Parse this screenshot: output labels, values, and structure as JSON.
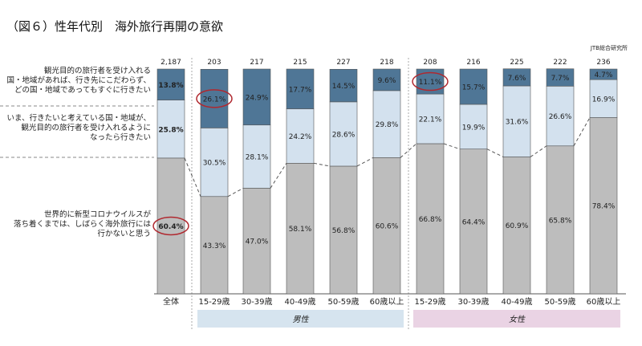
{
  "title": "（図６）性年代別　海外旅行再開の意欲",
  "source": "JTB総合研究所",
  "chart_data": {
    "type": "bar",
    "stacked": true,
    "percent_stacked": true,
    "categories": [
      "全体",
      "15-29歳",
      "30-39歳",
      "40-49歳",
      "50-59歳",
      "60歳以上",
      "15-29歳",
      "30-39歳",
      "40-49歳",
      "50-59歳",
      "60歳以上"
    ],
    "sample_sizes": [
      "2,187",
      "203",
      "217",
      "215",
      "227",
      "218",
      "208",
      "216",
      "225",
      "222",
      "236"
    ],
    "groups": [
      {
        "label": "男性",
        "start": 1,
        "end": 5,
        "color": "#d6e4ef"
      },
      {
        "label": "女性",
        "start": 6,
        "end": 10,
        "color": "#ead3e4"
      }
    ],
    "series": [
      {
        "name": "世界的に新型コロナウイルスが落ち着くまでは、しばらく海外旅行には行かないと思う",
        "color": "#bdbdbd",
        "values": [
          60.4,
          43.3,
          47.0,
          58.1,
          56.8,
          60.6,
          66.8,
          64.4,
          60.9,
          65.8,
          78.4
        ]
      },
      {
        "name": "いま、行きたいと考えている国・地域が、観光目的の旅行者を受け入れるようになったら行きたい",
        "color": "#d3e1ee",
        "values": [
          25.8,
          30.5,
          28.1,
          24.2,
          28.6,
          29.8,
          22.1,
          19.9,
          31.6,
          26.6,
          16.9
        ]
      },
      {
        "name": "観光目的の旅行者を受け入れる国・地域があれば、行き先にこだわらず、どの国・地域であってもすぐに行きたい",
        "color": "#4f7696",
        "values": [
          13.8,
          26.1,
          24.9,
          17.7,
          14.5,
          9.6,
          11.1,
          15.7,
          7.6,
          7.7,
          4.7
        ]
      }
    ],
    "highlighted": [
      {
        "series": 2,
        "index": 1
      },
      {
        "series": 2,
        "index": 6
      },
      {
        "series": 0,
        "index": 0
      }
    ]
  }
}
